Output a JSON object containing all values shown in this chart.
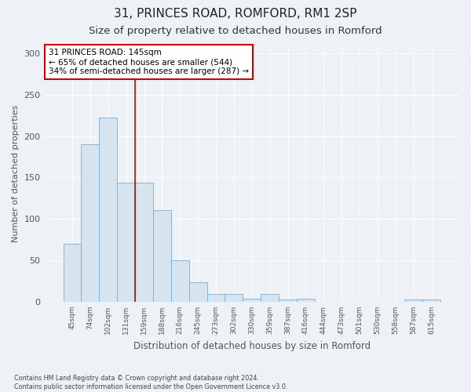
{
  "title1": "31, PRINCES ROAD, ROMFORD, RM1 2SP",
  "title2": "Size of property relative to detached houses in Romford",
  "xlabel": "Distribution of detached houses by size in Romford",
  "ylabel": "Number of detached properties",
  "categories": [
    "45sqm",
    "74sqm",
    "102sqm",
    "131sqm",
    "159sqm",
    "188sqm",
    "216sqm",
    "245sqm",
    "273sqm",
    "302sqm",
    "330sqm",
    "359sqm",
    "387sqm",
    "416sqm",
    "444sqm",
    "473sqm",
    "501sqm",
    "530sqm",
    "558sqm",
    "587sqm",
    "615sqm"
  ],
  "values": [
    70,
    190,
    222,
    144,
    144,
    111,
    50,
    24,
    9,
    9,
    4,
    9,
    3,
    4,
    0,
    0,
    0,
    0,
    0,
    3,
    3
  ],
  "bar_color": "#d6e4f0",
  "bar_edgecolor": "#7aadd4",
  "vline_x_index": 3,
  "vline_color": "#cc0000",
  "annotation_text": "31 PRINCES ROAD: 145sqm\n← 65% of detached houses are smaller (544)\n34% of semi-detached houses are larger (287) →",
  "annotation_box_color": "white",
  "annotation_box_edgecolor": "#cc0000",
  "footnote": "Contains HM Land Registry data © Crown copyright and database right 2024.\nContains public sector information licensed under the Open Government Licence v3.0.",
  "ylim": [
    0,
    310
  ],
  "yticks": [
    0,
    50,
    100,
    150,
    200,
    250,
    300
  ],
  "bg_color": "#eef2f7",
  "plot_bg_color": "#eef2f7",
  "title1_fontsize": 11,
  "title2_fontsize": 9.5,
  "grid_color": "#ffffff",
  "tick_color": "#555555"
}
